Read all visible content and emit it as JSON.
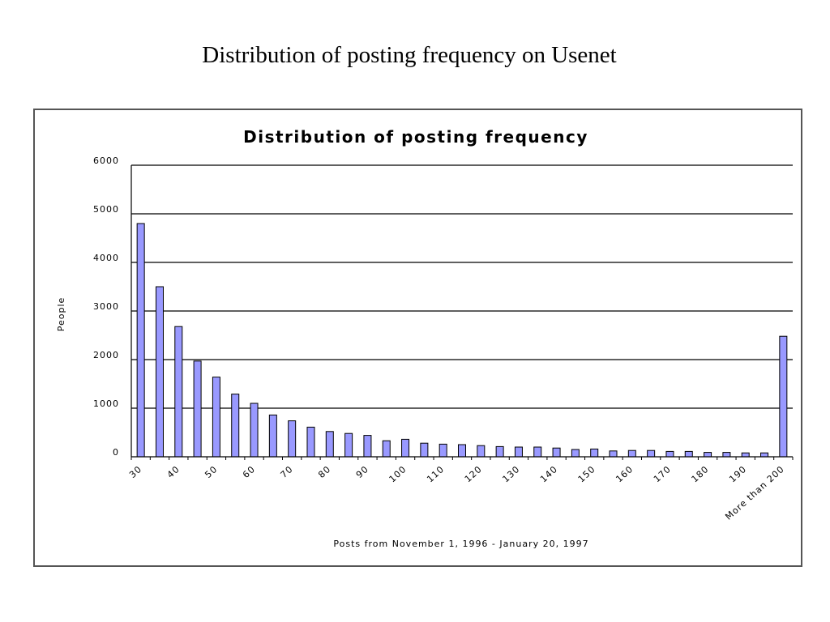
{
  "slide": {
    "title": "Distribution of posting frequency on Usenet"
  },
  "chart_data": {
    "type": "bar",
    "title": "Distribution of posting frequency",
    "xlabel": "Posts from November 1, 1996 - January 20, 1997",
    "ylabel": "People",
    "ylim": [
      0,
      6000
    ],
    "yticks": [
      "0",
      "1000",
      "2000",
      "3000",
      "4000",
      "5000",
      "6000"
    ],
    "grid": true,
    "bar_color": "#9999ff",
    "x_tick_labels": [
      "30",
      "40",
      "50",
      "60",
      "70",
      "80",
      "90",
      "100",
      "110",
      "120",
      "130",
      "140",
      "150",
      "160",
      "170",
      "180",
      "190",
      "More than 200"
    ],
    "values": [
      4800,
      3500,
      2680,
      1970,
      1640,
      1290,
      1100,
      860,
      740,
      610,
      520,
      480,
      440,
      330,
      360,
      280,
      260,
      250,
      230,
      210,
      200,
      200,
      180,
      150,
      160,
      120,
      130,
      130,
      110,
      110,
      90,
      90,
      80,
      80,
      2480
    ]
  }
}
